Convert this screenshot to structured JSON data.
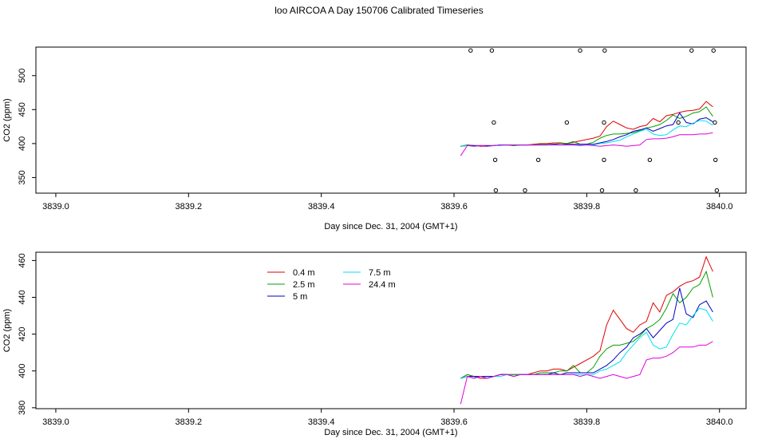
{
  "title": "loo AIRCOA A  Day 150706  Calibrated Timeseries",
  "colors": {
    "0.4 m": "#e00000",
    "2.5 m": "#00a000",
    "5 m": "#0000c0",
    "7.5 m": "#00e0f0",
    "24.4 m": "#e000e0"
  },
  "chart_data": [
    {
      "type": "line",
      "xlabel": "Day since Dec. 31, 2004 (GMT+1)",
      "ylabel": "CO2 (ppm)",
      "xlim": [
        3838.97,
        3840.04
      ],
      "ylim": [
        327,
        542
      ],
      "xticks": [
        "3839.0",
        "3839.2",
        "3839.4",
        "3839.6",
        "3839.8",
        "3840.0"
      ],
      "yticks": [
        "350",
        "400",
        "450",
        "500"
      ],
      "x": [
        3839.61,
        3839.62,
        3839.63,
        3839.64,
        3839.65,
        3839.66,
        3839.67,
        3839.68,
        3839.69,
        3839.7,
        3839.71,
        3839.72,
        3839.73,
        3839.74,
        3839.75,
        3839.76,
        3839.77,
        3839.78,
        3839.79,
        3839.8,
        3839.81,
        3839.82,
        3839.83,
        3839.84,
        3839.85,
        3839.86,
        3839.87,
        3839.88,
        3839.89,
        3839.9,
        3839.91,
        3839.92,
        3839.93,
        3839.94,
        3839.95,
        3839.96,
        3839.97,
        3839.98,
        3839.99
      ],
      "series": [
        {
          "name": "0.4 m",
          "values": [
            396,
            398,
            397,
            396,
            396,
            397,
            398,
            398,
            398,
            398,
            398,
            399,
            400,
            400,
            401,
            401,
            400,
            402,
            404,
            406,
            408,
            411,
            425,
            433,
            428,
            423,
            421,
            425,
            427,
            437,
            432,
            441,
            443,
            446,
            448,
            449,
            451,
            462,
            454
          ]
        },
        {
          "name": "2.5 m",
          "values": [
            396,
            398,
            397,
            397,
            397,
            397,
            398,
            398,
            398,
            398,
            398,
            398,
            399,
            399,
            399,
            400,
            400,
            403,
            399,
            399,
            402,
            408,
            412,
            414,
            414,
            415,
            416,
            419,
            423,
            425,
            428,
            434,
            442,
            437,
            440,
            445,
            447,
            454,
            440
          ]
        },
        {
          "name": "5 m",
          "values": [
            396,
            397,
            397,
            397,
            397,
            397,
            398,
            398,
            397,
            398,
            398,
            398,
            398,
            398,
            399,
            398,
            399,
            399,
            399,
            399,
            399,
            401,
            403,
            406,
            410,
            413,
            418,
            420,
            423,
            418,
            422,
            426,
            428,
            445,
            431,
            429,
            436,
            438,
            432
          ]
        },
        {
          "name": "7.5 m",
          "values": [
            396,
            397,
            396,
            397,
            396,
            397,
            397,
            398,
            397,
            398,
            398,
            398,
            398,
            398,
            398,
            398,
            398,
            398,
            398,
            398,
            398,
            400,
            401,
            403,
            405,
            410,
            414,
            418,
            421,
            414,
            412,
            413,
            420,
            426,
            425,
            430,
            434,
            433,
            427
          ]
        },
        {
          "name": "24.4 m",
          "values": [
            382,
            397,
            396,
            397,
            396,
            397,
            398,
            398,
            397,
            398,
            398,
            398,
            398,
            398,
            398,
            398,
            398,
            398,
            397,
            398,
            397,
            396,
            397,
            398,
            397,
            396,
            397,
            398,
            406,
            407,
            407,
            408,
            410,
            413,
            413,
            413,
            414,
            414,
            416
          ]
        }
      ],
      "scatter": {
        "x": [
          3839.625,
          3839.657,
          3839.79,
          3839.827,
          3839.958,
          3839.991,
          3839.66,
          3839.77,
          3839.826,
          3839.938,
          3839.993,
          3839.662,
          3839.727,
          3839.826,
          3839.895,
          3839.994,
          3839.663,
          3839.707,
          3839.823,
          3839.874,
          3839.996
        ],
        "y": [
          537,
          537,
          537,
          537,
          537,
          537,
          431,
          431,
          431,
          431,
          431,
          376,
          376,
          376,
          376,
          376,
          331,
          331,
          331,
          331,
          331
        ]
      }
    },
    {
      "type": "line",
      "xlabel": "Day since Dec. 31, 2004 (GMT+1)",
      "ylabel": "CO2 (ppm)",
      "xlim": [
        3838.97,
        3840.04
      ],
      "ylim": [
        379.5,
        464.5
      ],
      "xticks": [
        "3839.0",
        "3839.2",
        "3839.4",
        "3839.6",
        "3839.8",
        "3840.0"
      ],
      "yticks": [
        "380",
        "400",
        "420",
        "440",
        "460"
      ],
      "legend": [
        "0.4 m",
        "2.5 m",
        "5 m",
        "7.5 m",
        "24.4 m"
      ],
      "x": [
        3839.61,
        3839.62,
        3839.63,
        3839.64,
        3839.65,
        3839.66,
        3839.67,
        3839.68,
        3839.69,
        3839.7,
        3839.71,
        3839.72,
        3839.73,
        3839.74,
        3839.75,
        3839.76,
        3839.77,
        3839.78,
        3839.79,
        3839.8,
        3839.81,
        3839.82,
        3839.83,
        3839.84,
        3839.85,
        3839.86,
        3839.87,
        3839.88,
        3839.89,
        3839.9,
        3839.91,
        3839.92,
        3839.93,
        3839.94,
        3839.95,
        3839.96,
        3839.97,
        3839.98,
        3839.99
      ],
      "series": [
        {
          "name": "0.4 m",
          "values": [
            396,
            398,
            397,
            396,
            396,
            397,
            398,
            398,
            398,
            398,
            398,
            399,
            400,
            400,
            401,
            401,
            400,
            402,
            404,
            406,
            408,
            411,
            425,
            433,
            428,
            423,
            421,
            425,
            427,
            437,
            432,
            441,
            443,
            446,
            448,
            449,
            451,
            462,
            454
          ]
        },
        {
          "name": "2.5 m",
          "values": [
            396,
            398,
            397,
            397,
            397,
            397,
            398,
            398,
            398,
            398,
            398,
            398,
            399,
            399,
            399,
            400,
            400,
            403,
            399,
            399,
            402,
            408,
            412,
            414,
            414,
            415,
            416,
            419,
            423,
            425,
            428,
            434,
            442,
            437,
            440,
            445,
            447,
            454,
            440
          ]
        },
        {
          "name": "5 m",
          "values": [
            396,
            397,
            397,
            397,
            397,
            397,
            398,
            398,
            397,
            398,
            398,
            398,
            398,
            398,
            399,
            398,
            399,
            399,
            399,
            399,
            399,
            401,
            403,
            406,
            410,
            413,
            418,
            420,
            423,
            418,
            422,
            426,
            428,
            445,
            431,
            429,
            436,
            438,
            432
          ]
        },
        {
          "name": "7.5 m",
          "values": [
            396,
            397,
            396,
            397,
            396,
            397,
            397,
            398,
            397,
            398,
            398,
            398,
            398,
            398,
            398,
            398,
            398,
            398,
            398,
            398,
            398,
            400,
            401,
            403,
            405,
            410,
            414,
            418,
            421,
            414,
            412,
            413,
            420,
            426,
            425,
            430,
            434,
            433,
            427
          ]
        },
        {
          "name": "24.4 m",
          "values": [
            382,
            397,
            396,
            397,
            396,
            397,
            398,
            398,
            397,
            398,
            398,
            398,
            398,
            398,
            398,
            398,
            398,
            398,
            397,
            398,
            397,
            396,
            397,
            398,
            397,
            396,
            397,
            398,
            406,
            407,
            407,
            408,
            410,
            413,
            413,
            413,
            414,
            414,
            416
          ]
        }
      ]
    }
  ]
}
